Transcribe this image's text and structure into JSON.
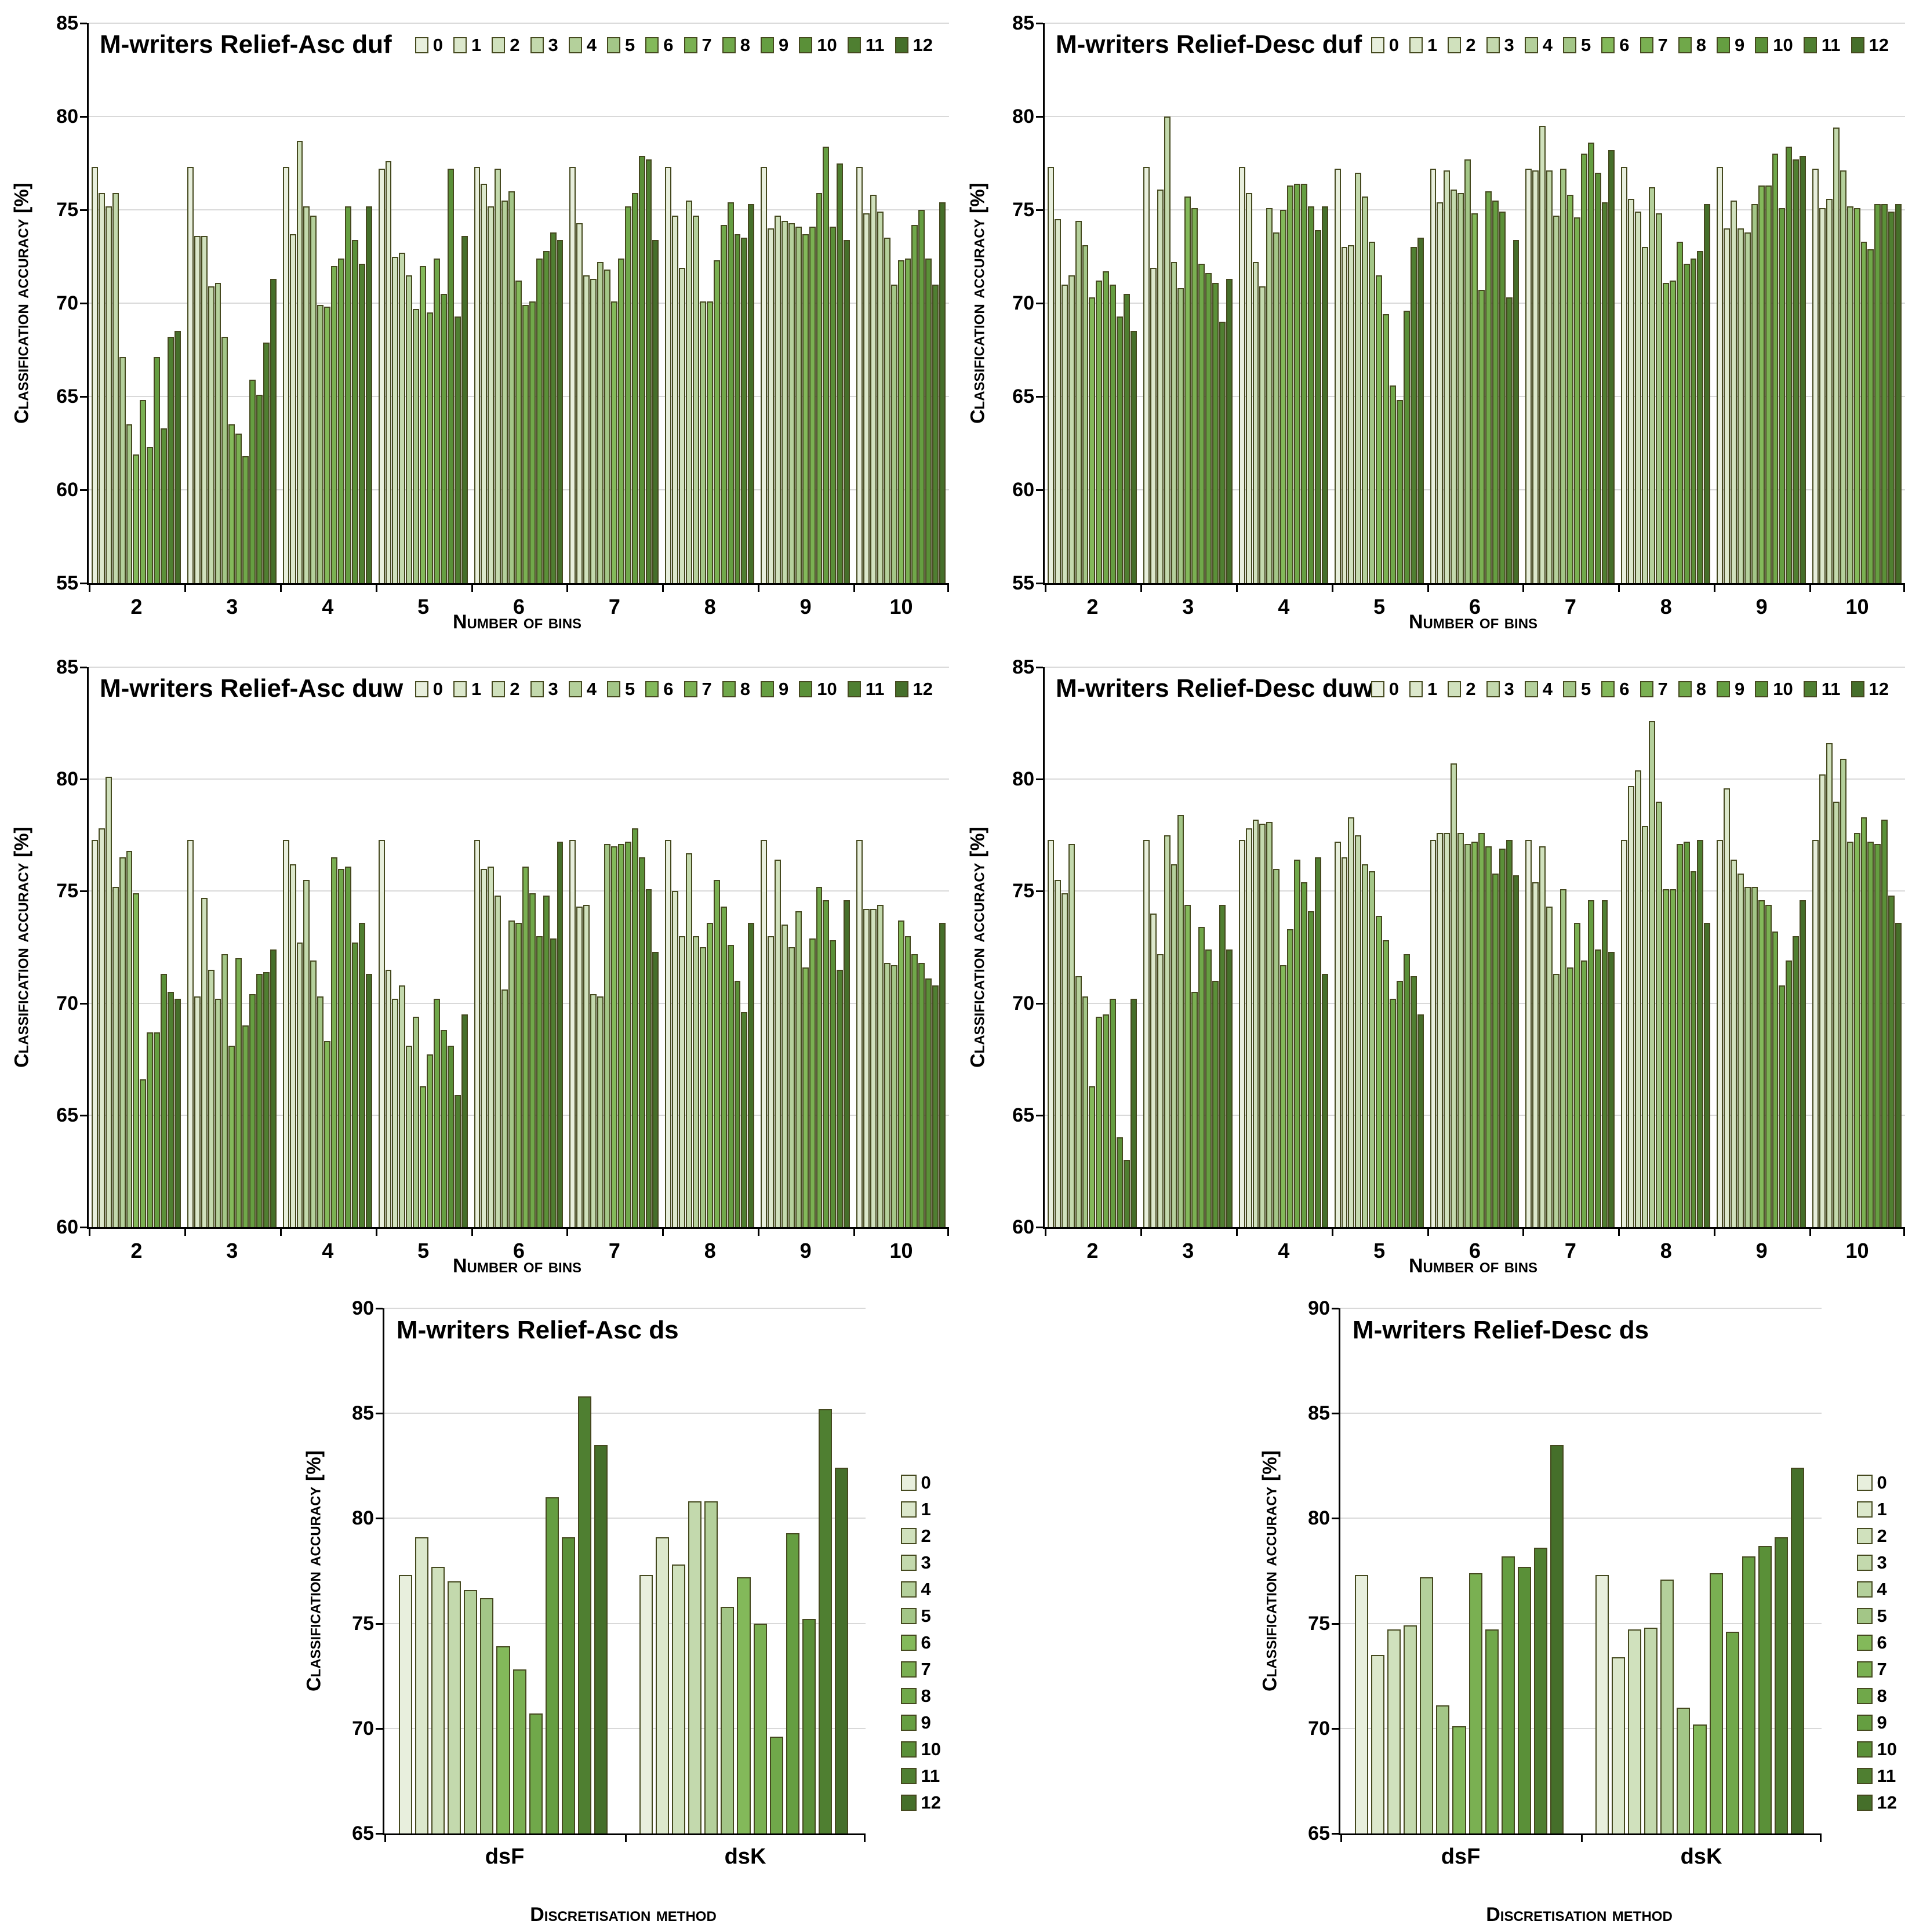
{
  "legend_labels": [
    "0",
    "1",
    "2",
    "3",
    "4",
    "5",
    "6",
    "7",
    "8",
    "9",
    "10",
    "11",
    "12"
  ],
  "series_colors": [
    "#e8efdd",
    "#dce8cc",
    "#d0e1bd",
    "#c3d9ad",
    "#b4d09b",
    "#a3c687",
    "#83b95a",
    "#7ab052",
    "#70a84a",
    "#659e41",
    "#5a9038",
    "#4f7f31",
    "#456f2a"
  ],
  "bar_border_color": "#45491f",
  "gridline_color": "#d9d9d9",
  "chart_data": [
    {
      "type": "bar",
      "title": "M-writers Relief-Asc duf",
      "xlabel": "Number of bins",
      "ylabel": "Classification accuracy [%]",
      "ymin": 55,
      "ymax": 85,
      "ytick_step": 5,
      "legend_position": "top",
      "categories": [
        "2",
        "3",
        "4",
        "5",
        "6",
        "7",
        "8",
        "9",
        "10"
      ],
      "series_names": [
        "0",
        "1",
        "2",
        "3",
        "4",
        "5",
        "6",
        "7",
        "8",
        "9",
        "10",
        "11",
        "12"
      ],
      "groups": [
        {
          "category": "2",
          "values": [
            77.3,
            75.9,
            75.2,
            75.9,
            67.1,
            63.5,
            61.9,
            64.8,
            62.3,
            67.1,
            63.3,
            68.2,
            68.5
          ]
        },
        {
          "category": "3",
          "values": [
            77.3,
            73.6,
            73.6,
            70.9,
            71.1,
            68.2,
            63.5,
            63.0,
            61.8,
            65.9,
            65.1,
            67.9,
            71.3
          ]
        },
        {
          "category": "4",
          "values": [
            77.3,
            73.7,
            78.7,
            75.2,
            74.7,
            69.9,
            69.8,
            72.0,
            72.4,
            75.2,
            73.4,
            72.1,
            75.2
          ]
        },
        {
          "category": "5",
          "values": [
            77.2,
            77.6,
            72.5,
            72.7,
            71.5,
            69.7,
            72.0,
            69.5,
            72.4,
            70.5,
            77.2,
            69.3,
            73.6
          ]
        },
        {
          "category": "6",
          "values": [
            77.3,
            76.4,
            75.2,
            77.2,
            75.5,
            76.0,
            71.2,
            69.9,
            70.1,
            72.4,
            72.8,
            73.8,
            73.4
          ]
        },
        {
          "category": "7",
          "values": [
            77.3,
            74.3,
            71.5,
            71.3,
            72.2,
            71.8,
            70.1,
            72.4,
            75.2,
            75.9,
            77.9,
            77.7,
            73.4
          ]
        },
        {
          "category": "8",
          "values": [
            77.3,
            74.7,
            71.9,
            75.5,
            74.7,
            70.1,
            70.1,
            72.3,
            74.2,
            75.4,
            73.7,
            73.5,
            75.3
          ]
        },
        {
          "category": "9",
          "values": [
            77.3,
            74.0,
            74.7,
            74.4,
            74.3,
            74.1,
            73.7,
            74.1,
            75.9,
            78.4,
            74.1,
            77.5,
            73.4
          ]
        },
        {
          "category": "10",
          "values": [
            77.3,
            74.8,
            75.8,
            74.9,
            73.5,
            71.0,
            72.3,
            72.4,
            74.2,
            75.0,
            72.4,
            71.0,
            75.4
          ]
        }
      ]
    },
    {
      "type": "bar",
      "title": "M-writers Relief-Desc duf",
      "xlabel": "Number of bins",
      "ylabel": "Classification accuracy [%]",
      "ymin": 55,
      "ymax": 85,
      "ytick_step": 5,
      "legend_position": "top",
      "categories": [
        "2",
        "3",
        "4",
        "5",
        "6",
        "7",
        "8",
        "9",
        "10"
      ],
      "series_names": [
        "0",
        "1",
        "2",
        "3",
        "4",
        "5",
        "6",
        "7",
        "8",
        "9",
        "10",
        "11",
        "12"
      ],
      "groups": [
        {
          "category": "2",
          "values": [
            77.3,
            74.5,
            71.0,
            71.5,
            74.4,
            73.1,
            70.3,
            71.2,
            71.7,
            71.0,
            69.3,
            70.5,
            68.5
          ]
        },
        {
          "category": "3",
          "values": [
            77.3,
            71.9,
            76.1,
            80.0,
            72.2,
            70.8,
            75.7,
            75.1,
            72.1,
            71.6,
            71.1,
            69.0,
            71.3
          ]
        },
        {
          "category": "4",
          "values": [
            77.3,
            75.9,
            72.2,
            70.9,
            75.1,
            73.8,
            75.0,
            76.3,
            76.4,
            76.4,
            75.2,
            73.9,
            75.2
          ]
        },
        {
          "category": "5",
          "values": [
            77.2,
            73.0,
            73.1,
            77.0,
            75.7,
            73.3,
            71.5,
            69.4,
            65.6,
            64.8,
            69.6,
            73.0,
            73.5
          ]
        },
        {
          "category": "6",
          "values": [
            77.2,
            75.4,
            77.1,
            76.1,
            75.9,
            77.7,
            74.8,
            70.7,
            76.0,
            75.5,
            74.9,
            70.3,
            73.4
          ]
        },
        {
          "category": "7",
          "values": [
            77.2,
            77.1,
            79.5,
            77.1,
            74.7,
            77.2,
            75.8,
            74.6,
            78.0,
            78.6,
            77.0,
            75.4,
            78.2
          ]
        },
        {
          "category": "8",
          "values": [
            77.3,
            75.6,
            74.9,
            73.0,
            76.2,
            74.8,
            71.1,
            71.2,
            73.3,
            72.1,
            72.4,
            72.8,
            75.3
          ]
        },
        {
          "category": "9",
          "values": [
            77.3,
            74.0,
            75.5,
            74.0,
            73.8,
            75.3,
            76.3,
            76.3,
            78.0,
            75.1,
            78.4,
            77.7,
            77.9
          ]
        },
        {
          "category": "10",
          "values": [
            77.2,
            75.1,
            75.6,
            79.4,
            77.1,
            75.2,
            75.1,
            73.3,
            72.9,
            75.3,
            75.3,
            74.9,
            75.3
          ]
        }
      ]
    },
    {
      "type": "bar",
      "title": "M-writers Relief-Asc duw",
      "xlabel": "Number of bins",
      "ylabel": "Classification accuracy [%]",
      "ymin": 60,
      "ymax": 85,
      "ytick_step": 5,
      "legend_position": "top",
      "categories": [
        "2",
        "3",
        "4",
        "5",
        "6",
        "7",
        "8",
        "9",
        "10"
      ],
      "series_names": [
        "0",
        "1",
        "2",
        "3",
        "4",
        "5",
        "6",
        "7",
        "8",
        "9",
        "10",
        "11",
        "12"
      ],
      "groups": [
        {
          "category": "2",
          "values": [
            77.3,
            77.8,
            80.1,
            75.2,
            76.5,
            76.8,
            74.9,
            66.6,
            68.7,
            68.7,
            71.3,
            70.5,
            70.2
          ]
        },
        {
          "category": "3",
          "values": [
            77.3,
            70.3,
            74.7,
            71.5,
            70.2,
            72.2,
            68.1,
            72.0,
            69.0,
            70.4,
            71.3,
            71.4,
            72.4
          ]
        },
        {
          "category": "4",
          "values": [
            77.3,
            76.2,
            72.7,
            75.5,
            71.9,
            70.3,
            68.3,
            76.5,
            76.0,
            76.1,
            72.7,
            73.6,
            71.3
          ]
        },
        {
          "category": "5",
          "values": [
            77.3,
            71.5,
            70.2,
            70.8,
            68.1,
            69.4,
            66.3,
            67.7,
            70.2,
            68.8,
            68.1,
            65.9,
            69.5
          ]
        },
        {
          "category": "6",
          "values": [
            77.3,
            76.0,
            76.1,
            74.8,
            70.6,
            73.7,
            73.6,
            76.1,
            74.9,
            73.0,
            74.8,
            72.9,
            77.2
          ]
        },
        {
          "category": "7",
          "values": [
            77.3,
            74.3,
            74.4,
            70.4,
            70.3,
            77.1,
            77.0,
            77.1,
            77.2,
            77.8,
            76.5,
            75.1,
            72.3
          ]
        },
        {
          "category": "8",
          "values": [
            77.3,
            75.0,
            73.0,
            76.7,
            73.0,
            72.5,
            73.6,
            75.5,
            74.3,
            72.6,
            71.0,
            69.6,
            73.6
          ]
        },
        {
          "category": "9",
          "values": [
            77.3,
            73.0,
            76.4,
            73.5,
            72.5,
            74.1,
            71.6,
            72.9,
            75.2,
            74.6,
            72.8,
            71.5,
            74.6
          ]
        },
        {
          "category": "10",
          "values": [
            77.3,
            74.2,
            74.2,
            74.4,
            71.8,
            71.7,
            73.7,
            73.0,
            72.2,
            71.8,
            71.1,
            70.8,
            73.6
          ]
        }
      ]
    },
    {
      "type": "bar",
      "title": "M-writers Relief-Desc duw",
      "xlabel": "Number of bins",
      "ylabel": "Classification accuracy [%]",
      "ymin": 60,
      "ymax": 85,
      "ytick_step": 5,
      "legend_position": "top",
      "categories": [
        "2",
        "3",
        "4",
        "5",
        "6",
        "7",
        "8",
        "9",
        "10"
      ],
      "series_names": [
        "0",
        "1",
        "2",
        "3",
        "4",
        "5",
        "6",
        "7",
        "8",
        "9",
        "10",
        "11",
        "12"
      ],
      "groups": [
        {
          "category": "2",
          "values": [
            77.3,
            75.5,
            74.9,
            77.1,
            71.2,
            70.3,
            66.3,
            69.4,
            69.5,
            70.2,
            64.0,
            63.0,
            70.2
          ]
        },
        {
          "category": "3",
          "values": [
            77.3,
            74.0,
            72.2,
            77.5,
            76.2,
            78.4,
            74.4,
            70.5,
            73.4,
            72.4,
            71.0,
            74.4,
            72.4
          ]
        },
        {
          "category": "4",
          "values": [
            77.3,
            77.8,
            78.2,
            78.0,
            78.1,
            76.0,
            71.7,
            73.3,
            76.4,
            75.4,
            74.1,
            76.5,
            71.3
          ]
        },
        {
          "category": "5",
          "values": [
            77.2,
            76.5,
            78.3,
            77.5,
            76.2,
            75.9,
            73.9,
            72.8,
            70.2,
            71.0,
            72.2,
            71.2,
            69.5
          ]
        },
        {
          "category": "6",
          "values": [
            77.3,
            77.6,
            77.6,
            80.7,
            77.6,
            77.1,
            77.2,
            77.6,
            77.0,
            75.8,
            76.9,
            77.3,
            75.7
          ]
        },
        {
          "category": "7",
          "values": [
            77.3,
            75.4,
            77.0,
            74.3,
            71.3,
            75.1,
            71.6,
            73.6,
            71.9,
            74.6,
            72.4,
            74.6,
            72.3
          ]
        },
        {
          "category": "8",
          "values": [
            77.3,
            79.7,
            80.4,
            77.9,
            82.6,
            79.0,
            75.1,
            75.1,
            77.1,
            77.2,
            75.9,
            77.3,
            73.6
          ]
        },
        {
          "category": "9",
          "values": [
            77.3,
            79.6,
            76.4,
            75.8,
            75.2,
            75.2,
            74.6,
            74.4,
            73.2,
            70.8,
            71.9,
            73.0,
            74.6
          ]
        },
        {
          "category": "10",
          "values": [
            77.3,
            80.2,
            81.6,
            79.0,
            80.9,
            77.2,
            77.6,
            78.3,
            77.2,
            77.1,
            78.2,
            74.8,
            73.6
          ]
        }
      ]
    },
    {
      "type": "bar",
      "title": "M-writers Relief-Asc ds",
      "xlabel": "Discretisation method",
      "ylabel": "Classification accuracy [%]",
      "ymin": 65,
      "ymax": 90,
      "ytick_step": 5,
      "legend_position": "right",
      "categories": [
        "dsF",
        "dsK"
      ],
      "series_names": [
        "0",
        "1",
        "2",
        "3",
        "4",
        "5",
        "6",
        "7",
        "8",
        "9",
        "10",
        "11",
        "12"
      ],
      "groups": [
        {
          "category": "dsF",
          "values": [
            77.3,
            79.1,
            77.7,
            77.0,
            76.6,
            76.2,
            73.9,
            72.8,
            70.7,
            81.0,
            79.1,
            85.8,
            83.5
          ]
        },
        {
          "category": "dsK",
          "values": [
            77.3,
            79.1,
            77.8,
            80.8,
            80.8,
            75.8,
            77.2,
            75.0,
            69.6,
            79.3,
            75.2,
            85.2,
            82.4
          ]
        }
      ]
    },
    {
      "type": "bar",
      "title": "M-writers Relief-Desc ds",
      "xlabel": "Discretisation method",
      "ylabel": "Classification accuracy [%]",
      "ymin": 65,
      "ymax": 90,
      "ytick_step": 5,
      "legend_position": "right",
      "categories": [
        "dsF",
        "dsK"
      ],
      "series_names": [
        "0",
        "1",
        "2",
        "3",
        "4",
        "5",
        "6",
        "7",
        "8",
        "9",
        "10",
        "11",
        "12"
      ],
      "groups": [
        {
          "category": "dsF",
          "values": [
            77.3,
            73.5,
            74.7,
            74.9,
            77.2,
            71.1,
            70.1,
            77.4,
            74.7,
            78.2,
            77.7,
            78.6,
            83.5
          ]
        },
        {
          "category": "dsK",
          "values": [
            77.3,
            73.4,
            74.7,
            74.8,
            77.1,
            71.0,
            70.2,
            77.4,
            74.6,
            78.2,
            78.7,
            79.1,
            82.4
          ]
        }
      ]
    }
  ]
}
